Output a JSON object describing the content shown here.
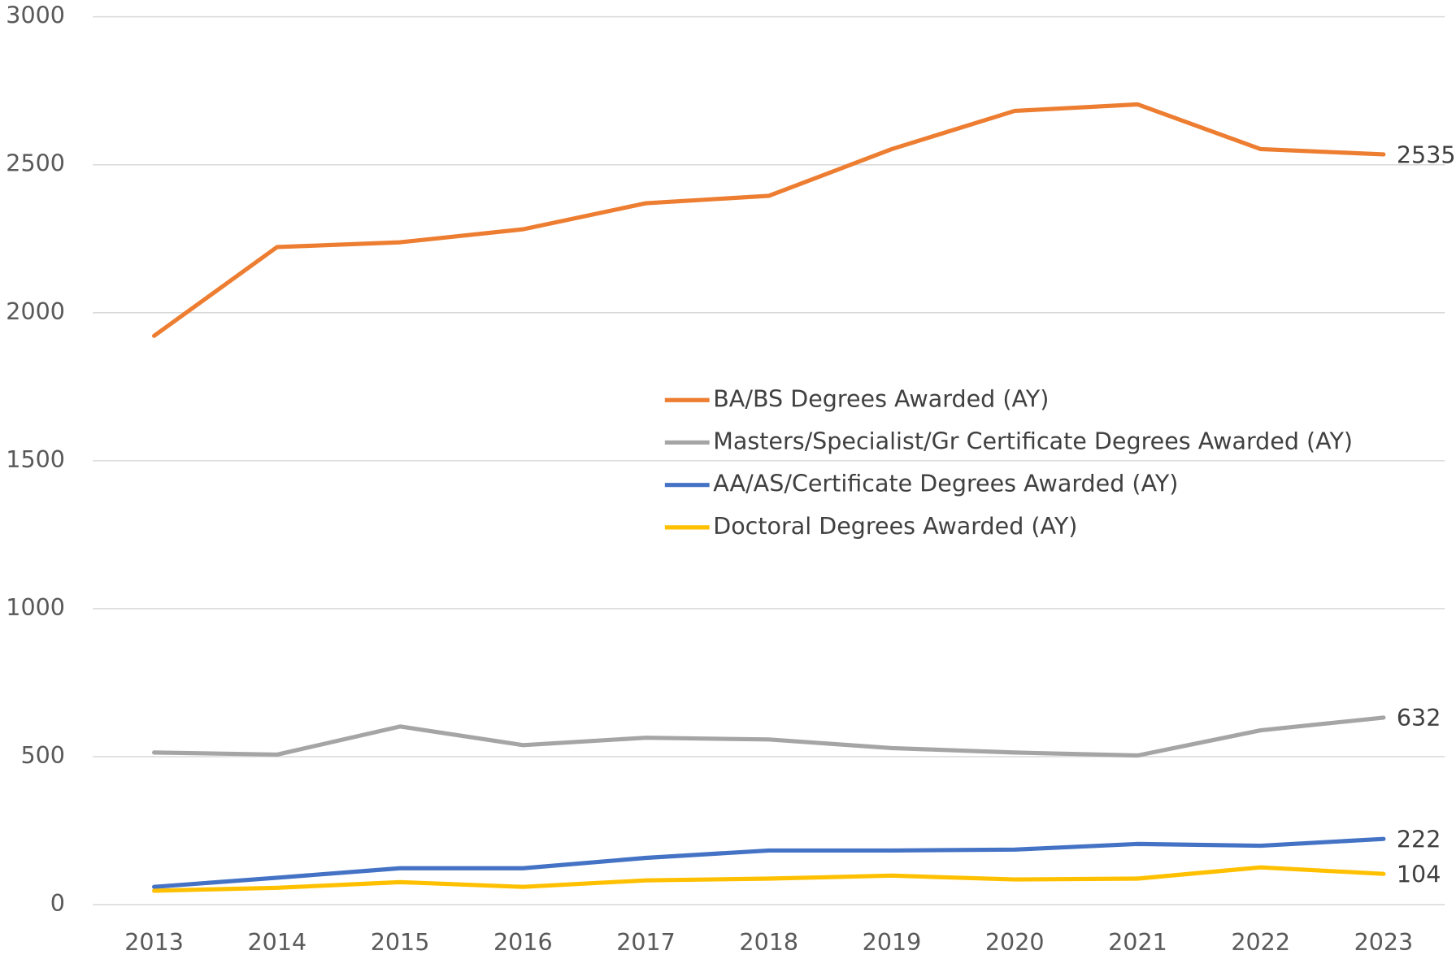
{
  "chart_data": {
    "type": "line",
    "categories": [
      "2013",
      "2014",
      "2015",
      "2016",
      "2017",
      "2018",
      "2019",
      "2020",
      "2021",
      "2022",
      "2023"
    ],
    "series": [
      {
        "name": "BA/BS Degrees Awarded (AY)",
        "color": "#ed7d31",
        "values": [
          1922,
          2222,
          2238,
          2282,
          2370,
          2395,
          2553,
          2682,
          2704,
          2553,
          2535
        ]
      },
      {
        "name": "Masters/Specialist/Gr Certificate Degrees Awarded (AY)",
        "color": "#a5a5a5",
        "values": [
          514,
          507,
          602,
          539,
          564,
          558,
          529,
          514,
          504,
          589,
          632
        ]
      },
      {
        "name": "AA/AS/Certificate Degrees Awarded (AY)",
        "color": "#4472c4",
        "values": [
          60,
          91,
          123,
          123,
          158,
          183,
          183,
          186,
          205,
          199,
          222
        ]
      },
      {
        "name": "Doctoral Degrees Awarded (AY)",
        "color": "#ffc000",
        "values": [
          47,
          57,
          76,
          60,
          82,
          88,
          98,
          85,
          88,
          126,
          104
        ]
      }
    ],
    "ylim": [
      0,
      3000
    ],
    "yticks": [
      0,
      500,
      1000,
      1500,
      2000,
      2500,
      3000
    ],
    "grid": true
  }
}
